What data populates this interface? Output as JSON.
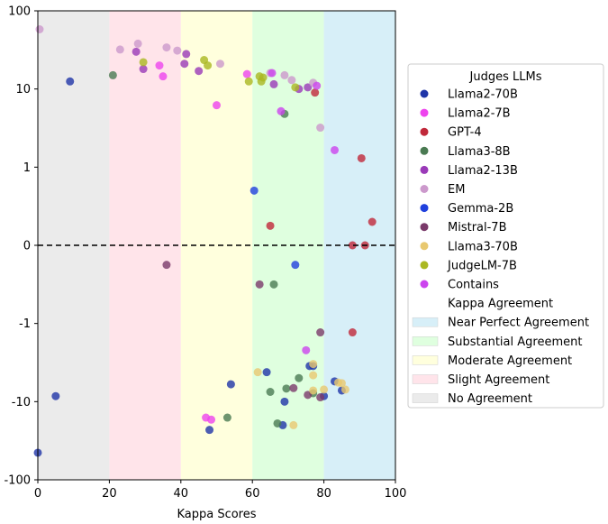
{
  "chart_data": {
    "type": "scatter",
    "title": "",
    "xlabel": "Kappa Scores",
    "ylabel": "",
    "xlim": [
      0,
      100
    ],
    "ylim": [
      -100,
      100
    ],
    "yscale": "symlog",
    "x_ticks": [
      0,
      20,
      40,
      60,
      80,
      100
    ],
    "y_ticks": [
      {
        "value": 100,
        "label": "100"
      },
      {
        "value": 10,
        "label": "10"
      },
      {
        "value": 1,
        "label": "1"
      },
      {
        "value": 0,
        "label": "0"
      },
      {
        "value": -1,
        "label": "-1"
      },
      {
        "value": -10,
        "label": "-10"
      },
      {
        "value": -100,
        "label": "-100"
      }
    ],
    "zero_line": "dashed black",
    "grid": false,
    "legend_title": "Judges LLMs",
    "legend_position": "right",
    "bands": [
      {
        "name": "No Agreement",
        "from": 0,
        "to": 20,
        "color": "#ebebeb"
      },
      {
        "name": "Slight Agreement",
        "from": 20,
        "to": 40,
        "color": "#ffe4ea"
      },
      {
        "name": "Moderate Agreement",
        "from": 40,
        "to": 60,
        "color": "#ffffdd"
      },
      {
        "name": "Substantial Agreement",
        "from": 60,
        "to": 80,
        "color": "#dfffdf"
      },
      {
        "name": "Near Perfect Agreement",
        "from": 80,
        "to": 100,
        "color": "#d7eff8"
      }
    ],
    "band_legend_title": "Kappa Agreement",
    "band_legend_order": [
      "Near Perfect Agreement",
      "Substantial Agreement",
      "Moderate Agreement",
      "Slight Agreement",
      "No Agreement"
    ],
    "series": [
      {
        "name": "Llama2-70B",
        "color": "#1f35a8",
        "points": [
          [
            9,
            12.5
          ],
          [
            54,
            -6.0
          ],
          [
            64,
            -4.2
          ],
          [
            76,
            -3.5
          ],
          [
            77,
            -3.5
          ],
          [
            80,
            -8.5
          ],
          [
            85,
            -7.2
          ],
          [
            83,
            -5.5
          ],
          [
            69,
            -10.0
          ],
          [
            48,
            -23.0
          ],
          [
            68.5,
            -20.0
          ],
          [
            0,
            -45.0
          ],
          [
            5,
            -8.5
          ]
        ]
      },
      {
        "name": "Llama2-7B",
        "color": "#ee44ee",
        "points": [
          [
            34,
            20.0
          ],
          [
            35,
            14.5
          ],
          [
            58.5,
            15.5
          ],
          [
            50,
            6.2
          ],
          [
            47,
            -16.0
          ],
          [
            48.5,
            -17.0
          ]
        ]
      },
      {
        "name": "GPT-4",
        "color": "#c0283a",
        "points": [
          [
            65,
            0.25
          ],
          [
            88,
            0.0
          ],
          [
            91.5,
            0.0
          ],
          [
            93.5,
            0.3
          ],
          [
            90.5,
            1.3
          ],
          [
            88,
            -1.3
          ],
          [
            77.5,
            9.0
          ]
        ]
      },
      {
        "name": "Llama3-8B",
        "color": "#4a7a52",
        "points": [
          [
            69,
            4.8
          ],
          [
            66,
            -0.5
          ],
          [
            73,
            -5.0
          ],
          [
            65,
            -7.5
          ],
          [
            69.5,
            -6.8
          ],
          [
            77,
            -7.8
          ],
          [
            53,
            -16.0
          ],
          [
            67,
            -19.0
          ],
          [
            21,
            15.0
          ]
        ]
      },
      {
        "name": "Llama2-13B",
        "color": "#9a3ab8",
        "points": [
          [
            27.5,
            30.0
          ],
          [
            29.5,
            18.0
          ],
          [
            41,
            21.0
          ],
          [
            45,
            17.0
          ],
          [
            41.5,
            28.0
          ],
          [
            66,
            11.5
          ],
          [
            73,
            10.0
          ],
          [
            75.5,
            10.5
          ]
        ]
      },
      {
        "name": "EM",
        "color": "#cc99cc",
        "points": [
          [
            0.5,
            58.0
          ],
          [
            23,
            32.0
          ],
          [
            28,
            38.0
          ],
          [
            36,
            34.0
          ],
          [
            39,
            31.0
          ],
          [
            51,
            21.0
          ],
          [
            65,
            16.0
          ],
          [
            69,
            15.0
          ],
          [
            71,
            13.0
          ],
          [
            77,
            12.0
          ],
          [
            79,
            3.2
          ]
        ]
      },
      {
        "name": "Gemma-2B",
        "color": "#2040dd",
        "points": [
          [
            60.5,
            0.7
          ],
          [
            72,
            -0.25
          ]
        ]
      },
      {
        "name": "Mistral-7B",
        "color": "#7a3a6a",
        "points": [
          [
            36,
            -0.25
          ],
          [
            62,
            -0.5
          ],
          [
            71.5,
            -6.7
          ],
          [
            75.5,
            -8.2
          ],
          [
            79,
            -8.8
          ],
          [
            79,
            -1.3
          ]
        ]
      },
      {
        "name": "Llama3-70B",
        "color": "#e8c870",
        "points": [
          [
            61.5,
            -4.2
          ],
          [
            77,
            -4.6
          ],
          [
            84,
            -5.7
          ],
          [
            85,
            -5.8
          ],
          [
            77,
            -3.3
          ],
          [
            80,
            -7.0
          ],
          [
            86,
            -7.0
          ],
          [
            71.5,
            -20.0
          ],
          [
            77,
            -7.2
          ]
        ]
      },
      {
        "name": "JudgeLM-7B",
        "color": "#aab822",
        "points": [
          [
            29.5,
            22.0
          ],
          [
            46.5,
            23.5
          ],
          [
            47.5,
            20.0
          ],
          [
            59,
            12.5
          ],
          [
            62,
            14.5
          ],
          [
            62.5,
            12.5
          ],
          [
            72,
            10.5
          ],
          [
            63,
            14.0
          ]
        ]
      },
      {
        "name": "Contains",
        "color": "#cc44ee",
        "points": [
          [
            83,
            1.65
          ],
          [
            75,
            -2.2
          ],
          [
            65.5,
            16.0
          ],
          [
            68,
            5.2
          ],
          [
            78,
            11.0
          ]
        ]
      }
    ]
  }
}
